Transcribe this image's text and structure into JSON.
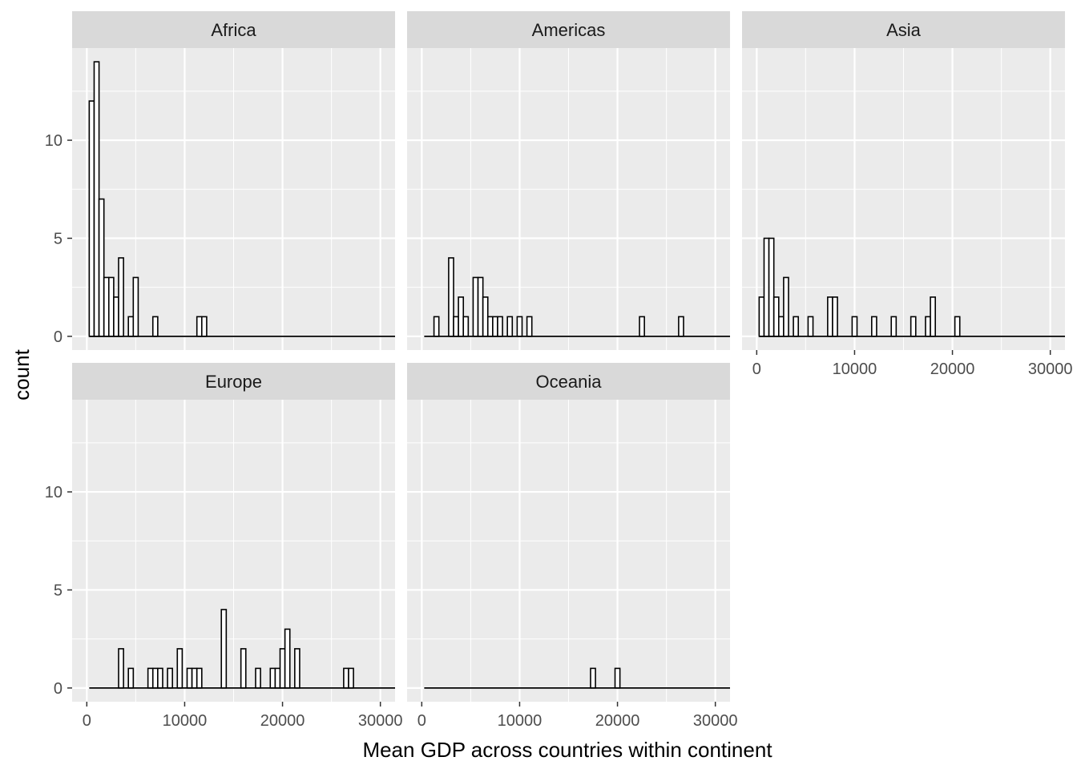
{
  "chart_data": {
    "type": "histogram",
    "faceted": true,
    "xlabel": "Mean GDP across countries within continent",
    "ylabel": "count",
    "xlim": [
      -1500,
      31500
    ],
    "ylim": [
      -0.7,
      14.7
    ],
    "x_ticks": [
      0,
      10000,
      20000,
      30000
    ],
    "x_tick_labels": [
      "0",
      "10000",
      "20000",
      "30000"
    ],
    "y_ticks": [
      0,
      5,
      10
    ],
    "y_tick_labels": [
      "0",
      "5",
      "10"
    ],
    "bin_width": 500,
    "grid": true,
    "panel_background": "#EBEBEB",
    "strip_background": "#D9D9D9",
    "bar_fill": "#FFFFFF",
    "bar_outline": "#000000",
    "panels": [
      {
        "name": "Africa",
        "bins": [
          {
            "x": 500,
            "count": 12
          },
          {
            "x": 1000,
            "count": 14
          },
          {
            "x": 1500,
            "count": 7
          },
          {
            "x": 2000,
            "count": 3
          },
          {
            "x": 2500,
            "count": 3
          },
          {
            "x": 3000,
            "count": 2
          },
          {
            "x": 3500,
            "count": 4
          },
          {
            "x": 4000,
            "count": 0
          },
          {
            "x": 4500,
            "count": 1
          },
          {
            "x": 5000,
            "count": 3
          },
          {
            "x": 7000,
            "count": 1
          },
          {
            "x": 11500,
            "count": 1
          },
          {
            "x": 12000,
            "count": 1
          }
        ]
      },
      {
        "name": "Americas",
        "bins": [
          {
            "x": 1500,
            "count": 1
          },
          {
            "x": 3000,
            "count": 4
          },
          {
            "x": 3500,
            "count": 1
          },
          {
            "x": 4000,
            "count": 2
          },
          {
            "x": 4500,
            "count": 1
          },
          {
            "x": 5500,
            "count": 3
          },
          {
            "x": 6000,
            "count": 3
          },
          {
            "x": 6500,
            "count": 2
          },
          {
            "x": 7000,
            "count": 1
          },
          {
            "x": 7500,
            "count": 1
          },
          {
            "x": 8000,
            "count": 1
          },
          {
            "x": 9000,
            "count": 1
          },
          {
            "x": 10000,
            "count": 1
          },
          {
            "x": 11000,
            "count": 1
          },
          {
            "x": 22500,
            "count": 1
          },
          {
            "x": 26500,
            "count": 1
          }
        ]
      },
      {
        "name": "Asia",
        "bins": [
          {
            "x": 500,
            "count": 2
          },
          {
            "x": 1000,
            "count": 5
          },
          {
            "x": 1500,
            "count": 5
          },
          {
            "x": 2000,
            "count": 2
          },
          {
            "x": 2500,
            "count": 1
          },
          {
            "x": 3000,
            "count": 3
          },
          {
            "x": 4000,
            "count": 1
          },
          {
            "x": 5500,
            "count": 1
          },
          {
            "x": 7500,
            "count": 2
          },
          {
            "x": 8000,
            "count": 2
          },
          {
            "x": 10000,
            "count": 1
          },
          {
            "x": 12000,
            "count": 1
          },
          {
            "x": 14000,
            "count": 1
          },
          {
            "x": 16000,
            "count": 1
          },
          {
            "x": 17500,
            "count": 1
          },
          {
            "x": 18000,
            "count": 2
          },
          {
            "x": 20500,
            "count": 1
          }
        ]
      },
      {
        "name": "Europe",
        "bins": [
          {
            "x": 3500,
            "count": 2
          },
          {
            "x": 4500,
            "count": 1
          },
          {
            "x": 6500,
            "count": 1
          },
          {
            "x": 7000,
            "count": 1
          },
          {
            "x": 7500,
            "count": 1
          },
          {
            "x": 8500,
            "count": 1
          },
          {
            "x": 9500,
            "count": 2
          },
          {
            "x": 10500,
            "count": 1
          },
          {
            "x": 11000,
            "count": 1
          },
          {
            "x": 11500,
            "count": 1
          },
          {
            "x": 14000,
            "count": 4
          },
          {
            "x": 16000,
            "count": 2
          },
          {
            "x": 17500,
            "count": 1
          },
          {
            "x": 19000,
            "count": 1
          },
          {
            "x": 19500,
            "count": 1
          },
          {
            "x": 20000,
            "count": 2
          },
          {
            "x": 20500,
            "count": 3
          },
          {
            "x": 21500,
            "count": 2
          },
          {
            "x": 26500,
            "count": 1
          },
          {
            "x": 27000,
            "count": 1
          }
        ]
      },
      {
        "name": "Oceania",
        "bins": [
          {
            "x": 17500,
            "count": 1
          },
          {
            "x": 20000,
            "count": 1
          }
        ]
      }
    ]
  }
}
